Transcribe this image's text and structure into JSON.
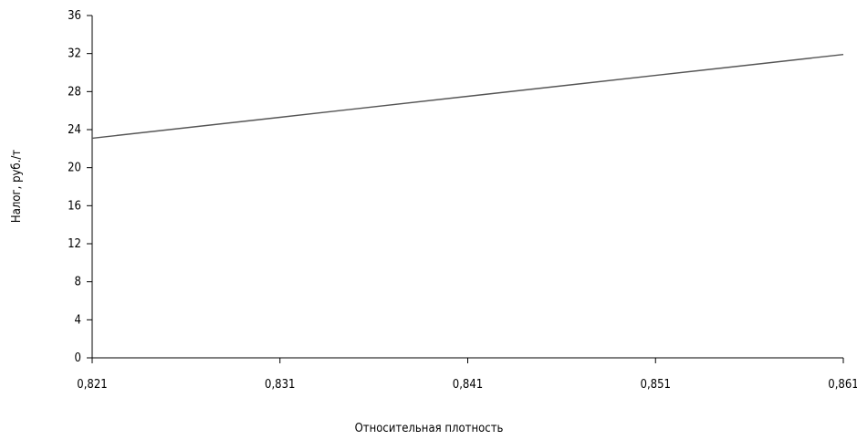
{
  "chart_data": {
    "type": "line",
    "title": "",
    "xlabel": "Относительная плотность",
    "ylabel": "Налог, руб./т",
    "x_ticks": [
      "0,821",
      "0,831",
      "0,841",
      "0,851",
      "0,861"
    ],
    "y_ticks": [
      "0",
      "4",
      "8",
      "12",
      "16",
      "20",
      "24",
      "28",
      "32",
      "36"
    ],
    "xlim": [
      0.821,
      0.861
    ],
    "ylim": [
      0,
      36
    ],
    "grid": false,
    "series": [
      {
        "x": [
          0.821,
          0.831,
          0.841,
          0.851,
          0.861
        ],
        "y": [
          23.1,
          25.3,
          27.5,
          29.7,
          31.9
        ],
        "color": "#555555"
      }
    ]
  }
}
